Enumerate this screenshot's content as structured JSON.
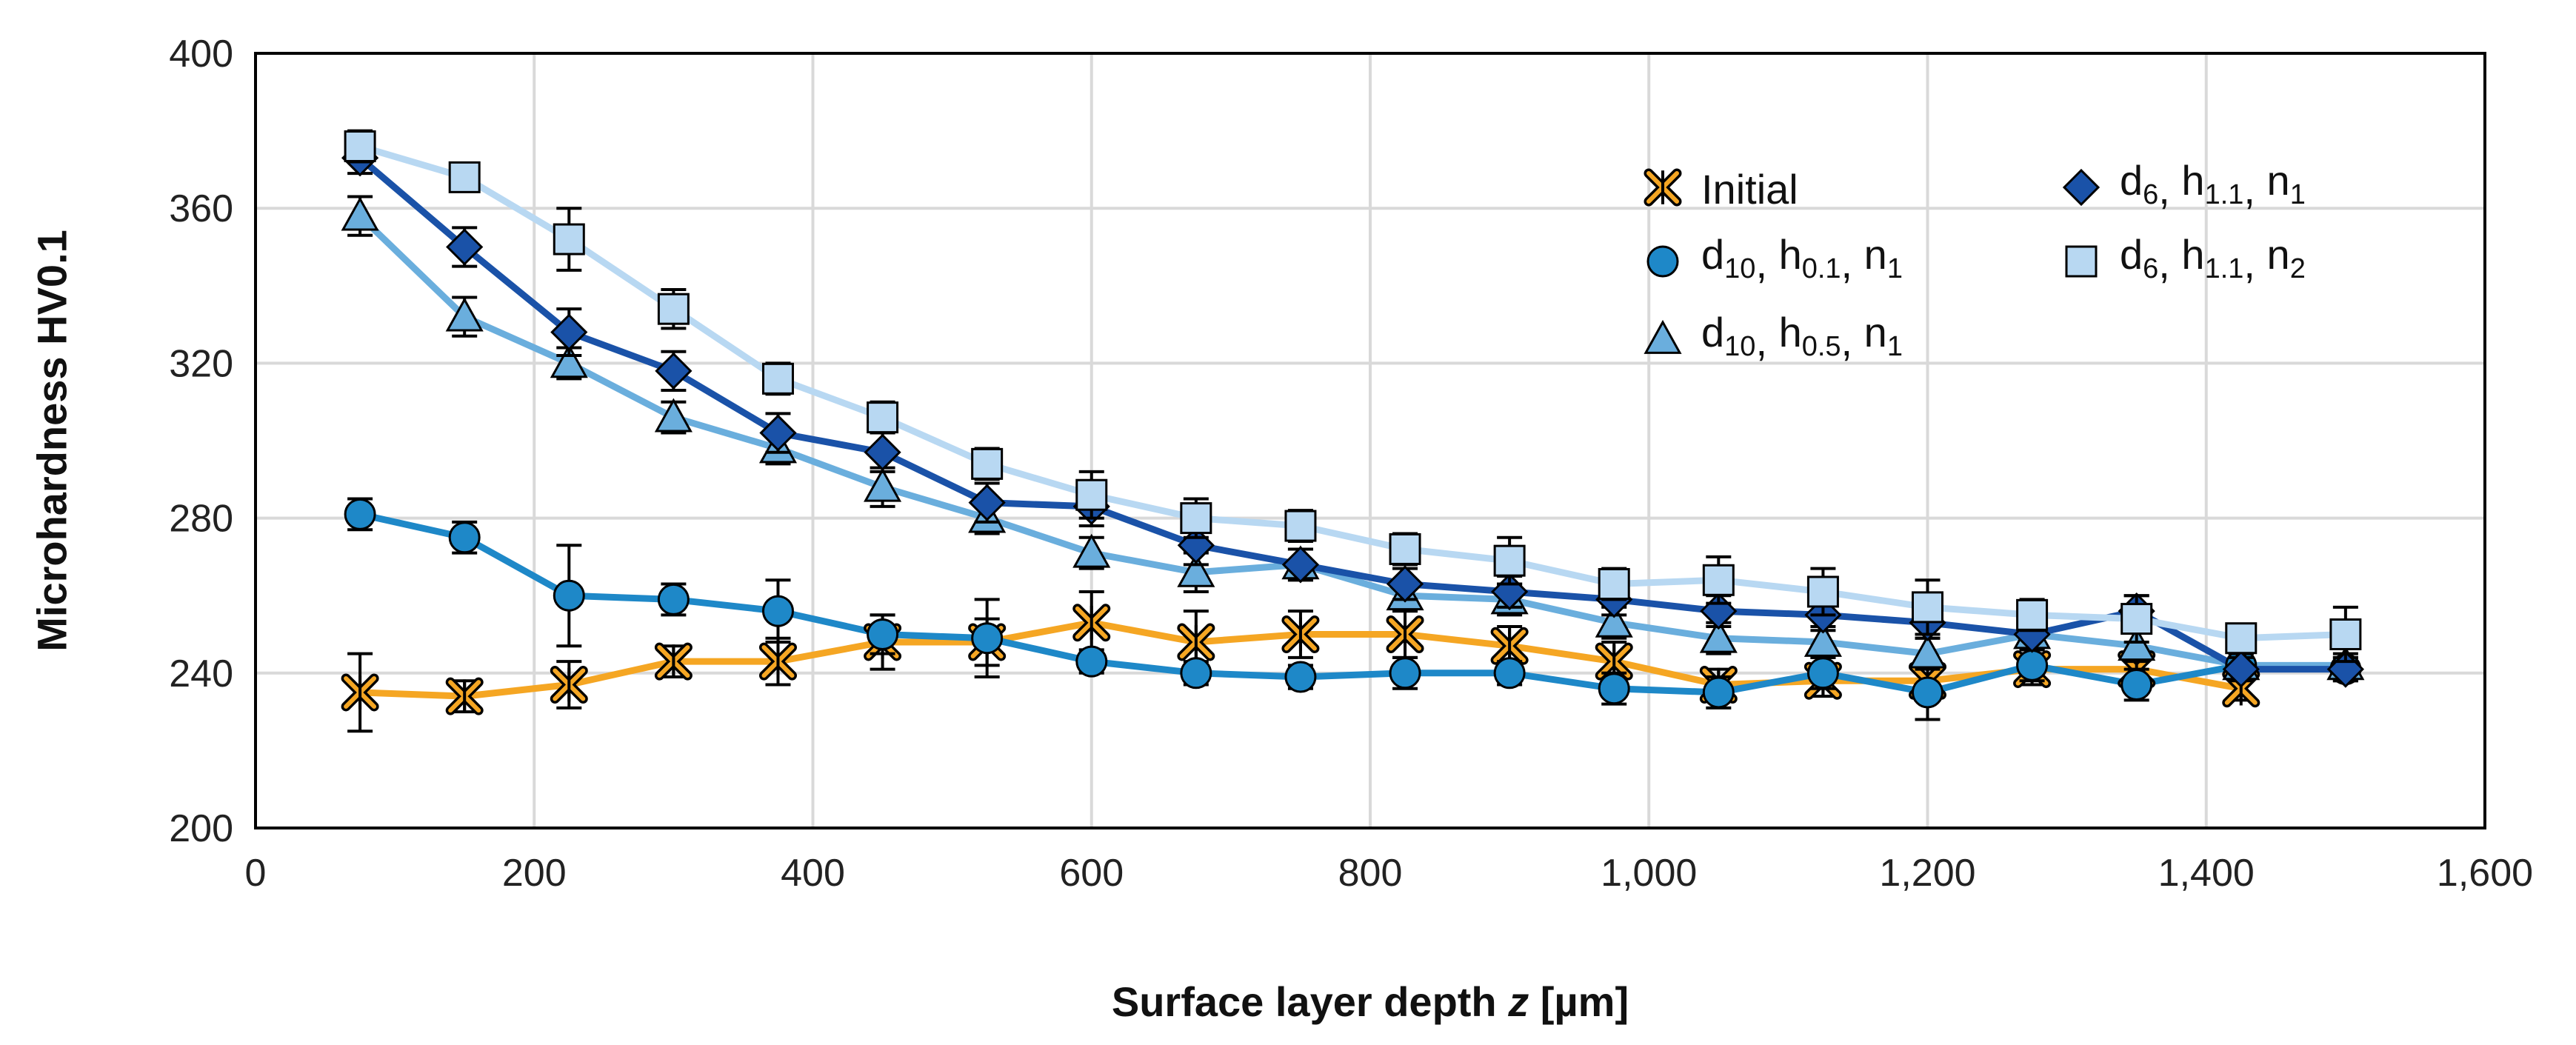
{
  "chart_data": {
    "type": "line",
    "xlabel": "Surface layer depth",
    "xlabel_var": "z",
    "xlabel_unit": "[µm]",
    "ylabel": "Microhardness HV0.1",
    "xlim": [
      0,
      1600
    ],
    "ylim": [
      200,
      400
    ],
    "x_ticks": [
      "0",
      "200",
      "400",
      "600",
      "800",
      "1,000",
      "1,200",
      "1,400",
      "1,600"
    ],
    "y_ticks": [
      "200",
      "240",
      "280",
      "320",
      "360",
      "400"
    ],
    "grid": true,
    "legend_position": "top-right",
    "series": [
      {
        "key": "initial",
        "label": "Initial",
        "marker": "x-star",
        "color": "#F5A623",
        "x": [
          75,
          150,
          225,
          300,
          375,
          450,
          525,
          600,
          675,
          750,
          825,
          900,
          975,
          1050,
          1125,
          1200,
          1275,
          1350,
          1425
        ],
        "y": [
          235,
          234,
          237,
          243,
          243,
          248,
          248,
          253,
          248,
          250,
          250,
          247,
          243,
          237,
          238,
          238,
          241,
          241,
          236
        ],
        "err": [
          10,
          4,
          6,
          4,
          6,
          7,
          6,
          8,
          8,
          6,
          6,
          5,
          5,
          4,
          4,
          4,
          4,
          4,
          3
        ]
      },
      {
        "key": "d10_h01_n1",
        "label": "d10, h0.1, n1",
        "label_parts": {
          "a": "d",
          "a_sub": "10",
          "b": "h",
          "b_sub": "0.1",
          "c": "n",
          "c_sub": "1"
        },
        "marker": "circle",
        "color": "#1E88C8",
        "x": [
          75,
          150,
          225,
          300,
          375,
          450,
          525,
          600,
          675,
          750,
          825,
          900,
          975,
          1050,
          1125,
          1200,
          1275,
          1350,
          1425,
          1500
        ],
        "y": [
          281,
          275,
          260,
          259,
          256,
          250,
          249,
          243,
          240,
          239,
          240,
          240,
          236,
          235,
          240,
          235,
          242,
          237,
          242,
          241
        ],
        "err": [
          4,
          4,
          13,
          4,
          8,
          5,
          10,
          3,
          3,
          3,
          4,
          3,
          4,
          4,
          4,
          7,
          4,
          4,
          3,
          3
        ]
      },
      {
        "key": "d10_h05_n1",
        "label": "d10, h0.5, n1",
        "label_parts": {
          "a": "d",
          "a_sub": "10",
          "b": "h",
          "b_sub": "0.5",
          "c": "n",
          "c_sub": "1"
        },
        "marker": "triangle",
        "color": "#6AAEDD",
        "x": [
          75,
          150,
          225,
          300,
          375,
          450,
          525,
          600,
          675,
          750,
          825,
          900,
          975,
          1050,
          1125,
          1200,
          1275,
          1350,
          1425,
          1500
        ],
        "y": [
          358,
          332,
          320,
          306,
          298,
          288,
          280,
          271,
          266,
          268,
          260,
          259,
          253,
          249,
          248,
          245,
          250,
          247,
          242,
          242
        ],
        "err": [
          5,
          5,
          4,
          4,
          4,
          5,
          4,
          4,
          5,
          4,
          4,
          4,
          4,
          4,
          4,
          4,
          4,
          4,
          3,
          3
        ]
      },
      {
        "key": "d6_h11_n1",
        "label": "d6, h1.1, n1",
        "label_parts": {
          "a": "d",
          "a_sub": "6",
          "b": "h",
          "b_sub": "1.1",
          "c": "n",
          "c_sub": "1"
        },
        "marker": "diamond",
        "color": "#1A52A8",
        "x": [
          75,
          150,
          225,
          300,
          375,
          450,
          525,
          600,
          675,
          750,
          825,
          900,
          975,
          1050,
          1125,
          1200,
          1275,
          1350,
          1425,
          1500
        ],
        "y": [
          373,
          350,
          328,
          318,
          302,
          297,
          284,
          283,
          273,
          268,
          263,
          261,
          259,
          256,
          255,
          253,
          250,
          256,
          241,
          241
        ],
        "err": [
          4,
          5,
          6,
          5,
          5,
          5,
          5,
          5,
          5,
          4,
          4,
          4,
          4,
          4,
          4,
          4,
          4,
          4,
          3,
          3
        ]
      },
      {
        "key": "d6_h11_n2",
        "label": "d6, h1.1, n2",
        "label_parts": {
          "a": "d",
          "a_sub": "6",
          "b": "h",
          "b_sub": "1.1",
          "c": "n",
          "c_sub": "2"
        },
        "marker": "square",
        "color": "#B8D8F2",
        "x": [
          75,
          150,
          225,
          300,
          375,
          450,
          525,
          600,
          675,
          750,
          825,
          900,
          975,
          1050,
          1125,
          1200,
          1275,
          1350,
          1425,
          1500
        ],
        "y": [
          376,
          368,
          352,
          334,
          316,
          306,
          294,
          286,
          280,
          278,
          272,
          269,
          263,
          264,
          261,
          257,
          255,
          254,
          249,
          250
        ],
        "err": [
          4,
          3,
          8,
          5,
          4,
          4,
          4,
          6,
          5,
          4,
          4,
          6,
          4,
          6,
          6,
          7,
          4,
          6,
          3,
          7
        ]
      }
    ]
  }
}
